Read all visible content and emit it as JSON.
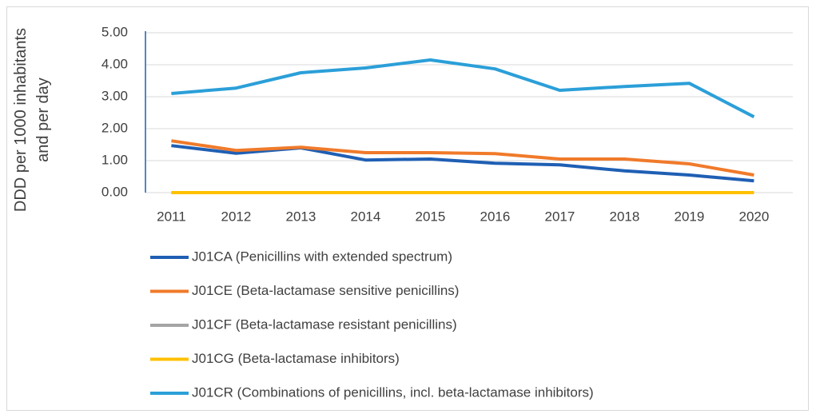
{
  "chart_data": {
    "type": "line",
    "y_label": "DDD per 1000 inhabitants and per day",
    "categories": [
      "2011",
      "2012",
      "2013",
      "2014",
      "2015",
      "2016",
      "2017",
      "2018",
      "2019",
      "2020"
    ],
    "series": [
      {
        "name": "J01CA (Penicillins with extended spectrum)",
        "color": "#1f5fb4",
        "values": [
          1.47,
          1.23,
          1.4,
          1.02,
          1.05,
          0.92,
          0.87,
          0.68,
          0.55,
          0.37
        ]
      },
      {
        "name": "J01CE (Beta-lactamase sensitive penicillins)",
        "color": "#f07a2a",
        "values": [
          1.62,
          1.32,
          1.42,
          1.25,
          1.25,
          1.22,
          1.05,
          1.05,
          0.9,
          0.55
        ]
      },
      {
        "name": "J01CF (Beta-lactamase resistant penicillins)",
        "color": "#a5a5a5",
        "values": [
          0,
          0,
          0,
          0,
          0,
          0,
          0,
          0,
          0,
          0
        ]
      },
      {
        "name": "J01CG (Beta-lactamase inhibitors)",
        "color": "#ffc000",
        "values": [
          0,
          0,
          0,
          0,
          0,
          0,
          0,
          0,
          0,
          0
        ]
      },
      {
        "name": "J01CR (Combinations of penicillins, incl. beta-lactamase inhibitors)",
        "color": "#2b9fd8",
        "values": [
          3.1,
          3.27,
          3.75,
          3.9,
          4.15,
          3.87,
          3.2,
          3.32,
          3.42,
          2.37
        ]
      }
    ],
    "ylim": [
      0,
      5
    ],
    "yticks": [
      {
        "value": 0,
        "label": "0.00"
      },
      {
        "value": 1,
        "label": "1.00"
      },
      {
        "value": 2,
        "label": "2.00"
      },
      {
        "value": 3,
        "label": "3.00"
      },
      {
        "value": 4,
        "label": "4.00"
      },
      {
        "value": 5,
        "label": "5.00"
      }
    ],
    "grid": true,
    "legend": "bottom"
  }
}
